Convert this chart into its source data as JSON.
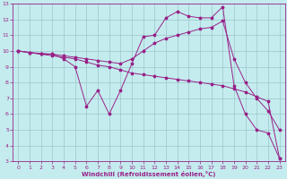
{
  "background_color": "#c4ecee",
  "line_color": "#992288",
  "xlabel": "Windchill (Refroidissement éolien,°C)",
  "xlim": [
    -0.5,
    23.5
  ],
  "ylim": [
    3,
    13
  ],
  "xticks": [
    0,
    1,
    2,
    3,
    4,
    5,
    6,
    7,
    8,
    9,
    10,
    11,
    12,
    13,
    14,
    15,
    16,
    17,
    18,
    19,
    20,
    21,
    22,
    23
  ],
  "yticks": [
    3,
    4,
    5,
    6,
    7,
    8,
    9,
    10,
    11,
    12,
    13
  ],
  "line1_x": [
    0,
    1,
    2,
    3,
    4,
    5,
    6,
    7,
    8,
    9,
    10,
    11,
    12,
    13,
    14,
    15,
    16,
    17,
    18,
    19,
    20,
    21,
    22,
    23
  ],
  "line1_y": [
    10.0,
    9.9,
    9.8,
    9.8,
    9.5,
    9.0,
    6.5,
    7.5,
    6.0,
    7.5,
    9.2,
    10.9,
    11.0,
    12.1,
    12.5,
    12.2,
    12.1,
    12.1,
    12.8,
    7.8,
    6.0,
    5.0,
    4.8,
    3.2
  ],
  "line2_x": [
    0,
    1,
    2,
    3,
    4,
    5,
    6,
    7,
    8,
    9,
    10,
    11,
    12,
    13,
    14,
    15,
    16,
    17,
    18,
    19,
    20,
    21,
    22,
    23
  ],
  "line2_y": [
    10.0,
    9.9,
    9.85,
    9.8,
    9.7,
    9.6,
    9.5,
    9.4,
    9.3,
    9.2,
    9.5,
    10.0,
    10.5,
    10.8,
    11.0,
    11.2,
    11.4,
    11.5,
    11.9,
    9.5,
    8.0,
    7.0,
    6.2,
    5.0
  ],
  "line3_x": [
    0,
    1,
    2,
    3,
    4,
    5,
    6,
    7,
    8,
    9,
    10,
    11,
    12,
    13,
    14,
    15,
    16,
    17,
    18,
    19,
    20,
    21,
    22,
    23
  ],
  "line3_y": [
    10.0,
    9.9,
    9.8,
    9.7,
    9.6,
    9.5,
    9.3,
    9.1,
    9.0,
    8.8,
    8.6,
    8.5,
    8.4,
    8.3,
    8.2,
    8.1,
    8.0,
    7.9,
    7.8,
    7.6,
    7.4,
    7.1,
    6.8,
    3.2
  ]
}
